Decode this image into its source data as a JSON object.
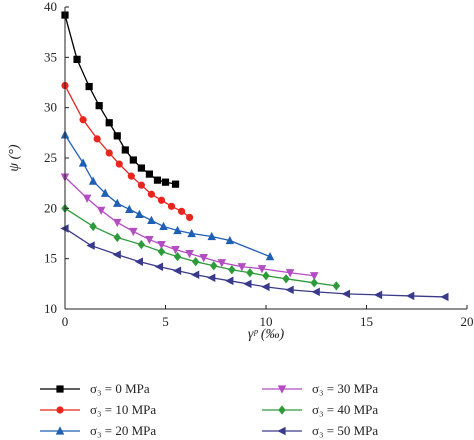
{
  "chart_data": {
    "type": "line",
    "xlabel": "γᵖ (‰)",
    "ylabel": "ψ (°)",
    "xlim": [
      0,
      20
    ],
    "ylim": [
      10,
      40
    ],
    "x_ticks": [
      "0",
      "5",
      "10",
      "15",
      "20"
    ],
    "y_ticks": [
      "10",
      "15",
      "20",
      "25",
      "30",
      "35",
      "40"
    ],
    "legend_position": "bottom",
    "series": [
      {
        "name": "σ₃ = 0 MPa",
        "color": "#000000",
        "marker": "square",
        "points": [
          [
            0,
            39.2
          ],
          [
            0.6,
            34.8
          ],
          [
            1.2,
            32.1
          ],
          [
            1.7,
            30.2
          ],
          [
            2.2,
            28.5
          ],
          [
            2.6,
            27.2
          ],
          [
            3.0,
            25.8
          ],
          [
            3.4,
            24.8
          ],
          [
            3.8,
            24.0
          ],
          [
            4.2,
            23.4
          ],
          [
            4.6,
            22.8
          ],
          [
            5.0,
            22.6
          ],
          [
            5.5,
            22.4
          ]
        ]
      },
      {
        "name": "σ₃ = 10 MPa",
        "color": "#e8261e",
        "marker": "circle",
        "points": [
          [
            0,
            32.2
          ],
          [
            0.9,
            28.8
          ],
          [
            1.6,
            26.9
          ],
          [
            2.2,
            25.5
          ],
          [
            2.7,
            24.4
          ],
          [
            3.3,
            23.2
          ],
          [
            3.8,
            22.3
          ],
          [
            4.3,
            21.4
          ],
          [
            4.8,
            20.8
          ],
          [
            5.3,
            20.2
          ],
          [
            5.8,
            19.7
          ],
          [
            6.2,
            19.1
          ]
        ]
      },
      {
        "name": "σ₃ = 20 MPa",
        "color": "#1f5fb4",
        "marker": "triangle",
        "points": [
          [
            0,
            27.3
          ],
          [
            0.9,
            24.5
          ],
          [
            1.4,
            22.7
          ],
          [
            2.0,
            21.5
          ],
          [
            2.6,
            20.5
          ],
          [
            3.2,
            19.9
          ],
          [
            3.7,
            19.4
          ],
          [
            4.3,
            18.8
          ],
          [
            4.9,
            18.2
          ],
          [
            5.6,
            17.8
          ],
          [
            6.3,
            17.5
          ],
          [
            7.3,
            17.2
          ],
          [
            8.2,
            16.8
          ],
          [
            10.2,
            15.2
          ]
        ]
      },
      {
        "name": "σ₃ = 30 MPa",
        "color": "#b44cc4",
        "marker": "triangle-down",
        "points": [
          [
            0,
            23.1
          ],
          [
            1.1,
            21.0
          ],
          [
            1.8,
            19.8
          ],
          [
            2.6,
            18.6
          ],
          [
            3.4,
            17.7
          ],
          [
            4.2,
            16.9
          ],
          [
            4.8,
            16.4
          ],
          [
            5.5,
            15.9
          ],
          [
            6.2,
            15.5
          ],
          [
            6.9,
            15.1
          ],
          [
            7.8,
            14.6
          ],
          [
            8.8,
            14.2
          ],
          [
            9.8,
            14.0
          ],
          [
            11.2,
            13.6
          ],
          [
            12.4,
            13.3
          ]
        ]
      },
      {
        "name": "σ₃ = 40 MPa",
        "color": "#2e9b3a",
        "marker": "diamond",
        "points": [
          [
            0,
            20.0
          ],
          [
            1.4,
            18.2
          ],
          [
            2.6,
            17.1
          ],
          [
            3.8,
            16.4
          ],
          [
            4.8,
            15.7
          ],
          [
            5.6,
            15.2
          ],
          [
            6.5,
            14.7
          ],
          [
            7.4,
            14.3
          ],
          [
            8.3,
            13.9
          ],
          [
            9.2,
            13.6
          ],
          [
            10.0,
            13.3
          ],
          [
            11.0,
            13.0
          ],
          [
            12.4,
            12.6
          ],
          [
            13.5,
            12.3
          ]
        ]
      },
      {
        "name": "σ₃ = 50 MPa",
        "color": "#3a3a8c",
        "marker": "triangle-left",
        "points": [
          [
            0,
            18.0
          ],
          [
            1.3,
            16.3
          ],
          [
            2.6,
            15.4
          ],
          [
            3.7,
            14.7
          ],
          [
            4.7,
            14.2
          ],
          [
            5.6,
            13.8
          ],
          [
            6.5,
            13.4
          ],
          [
            7.3,
            13.1
          ],
          [
            8.2,
            12.8
          ],
          [
            9.1,
            12.5
          ],
          [
            10.0,
            12.2
          ],
          [
            11.2,
            11.9
          ],
          [
            12.5,
            11.7
          ],
          [
            14.0,
            11.5
          ],
          [
            15.6,
            11.4
          ],
          [
            17.2,
            11.3
          ],
          [
            18.9,
            11.2
          ]
        ]
      }
    ]
  }
}
